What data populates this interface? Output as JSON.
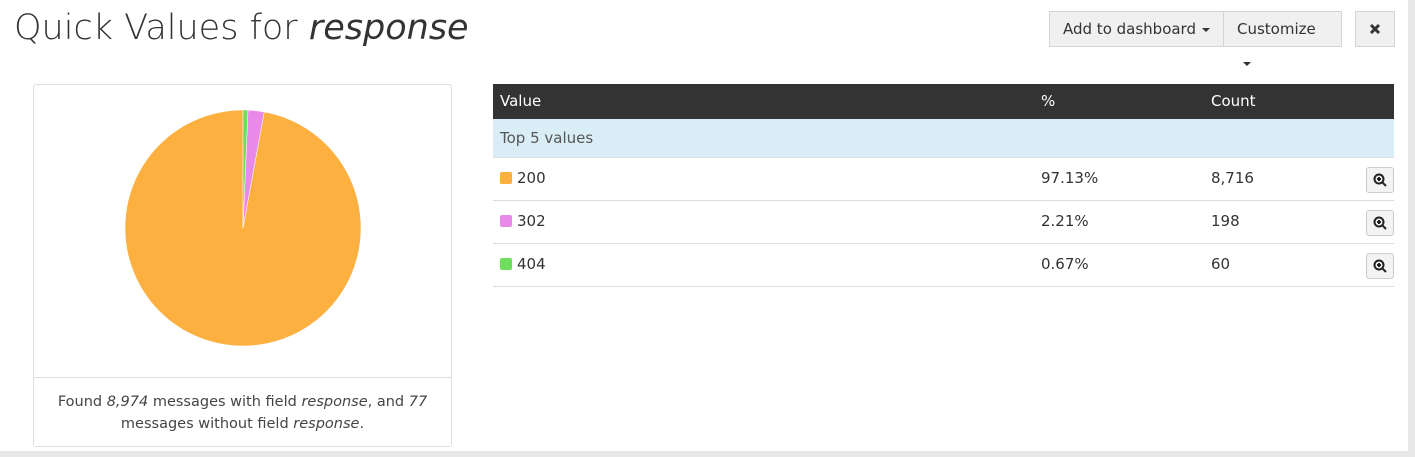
{
  "header": {
    "title": "Quick Values for",
    "field": "response",
    "buttons": [
      "Add to dashboard",
      "Customize"
    ]
  },
  "chart_data": {
    "type": "pie",
    "categories": [
      "200",
      "302",
      "404"
    ],
    "values": [
      97.13,
      2.21,
      0.67
    ],
    "colors": [
      "#fcb040",
      "#ea8ae8",
      "#70dd5c"
    ]
  },
  "footer": {
    "segments": [
      "Found ",
      "8,974",
      " messages with field ",
      "response",
      ", and ",
      "77",
      " messages without field ",
      "response",
      "."
    ]
  },
  "table": {
    "columns": [
      "Value",
      "%",
      "Count"
    ],
    "group": "Top 5 values",
    "rows": [
      [
        "200",
        "97.13%",
        "8,716"
      ],
      [
        "302",
        "2.21%",
        "198"
      ],
      [
        "404",
        "0.67%",
        "60"
      ]
    ]
  }
}
